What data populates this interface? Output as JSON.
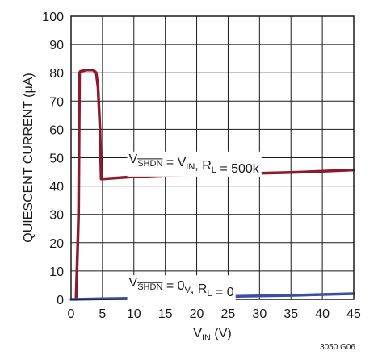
{
  "chart_data": {
    "type": "line",
    "xlabel": {
      "main": "V",
      "sub": "IN",
      "unit": " (V)"
    },
    "ylabel": "QUIESCENT CURRENT (μA)",
    "xlim": [
      0,
      45
    ],
    "ylim": [
      0,
      100
    ],
    "xticks": [
      "0",
      "5",
      "10",
      "15",
      "20",
      "25",
      "30",
      "35",
      "40",
      "45"
    ],
    "yticks": [
      "0",
      "10",
      "20",
      "30",
      "40",
      "50",
      "60",
      "70",
      "80",
      "90",
      "100"
    ],
    "grid": true,
    "series": [
      {
        "name": "V_SHDN = V_IN, R_L = 500k",
        "color": "#8b1a2b",
        "x": [
          0.8,
          1.0,
          1.2,
          1.35,
          1.5,
          2.5,
          3.5,
          4.0,
          4.3,
          4.6,
          4.8,
          5,
          10,
          15,
          20,
          25,
          30,
          35,
          40,
          45
        ],
        "y": [
          0,
          15,
          30,
          80,
          80.5,
          81,
          81,
          80,
          75,
          60,
          42.5,
          42.5,
          43.3,
          43.8,
          44,
          44.2,
          44.5,
          44.8,
          45.2,
          45.7
        ]
      },
      {
        "name": "V_SHDN = 0V, R_L = 0",
        "color": "#3a50a6",
        "x": [
          0,
          5,
          10,
          15,
          20,
          25,
          30,
          35,
          40,
          45
        ],
        "y": [
          0,
          0.2,
          0.4,
          0.6,
          0.8,
          1.0,
          1.2,
          1.4,
          1.7,
          2.0
        ]
      }
    ],
    "annotations": [
      {
        "series": 0,
        "parts": [
          {
            "t": "V",
            "sub": false
          },
          {
            "t": "SHDN",
            "sub": true,
            "overline": true
          },
          {
            "t": " = V",
            "sub": false
          },
          {
            "t": "IN",
            "sub": true
          },
          {
            "t": ", R",
            "sub": false
          },
          {
            "t": "L",
            "sub": true
          },
          {
            "t": " = 500k",
            "sub": false
          }
        ]
      },
      {
        "series": 1,
        "parts": [
          {
            "t": "V",
            "sub": false
          },
          {
            "t": "SHDN",
            "sub": true,
            "overline": true
          },
          {
            "t": " = 0",
            "sub": false
          },
          {
            "t": "V",
            "sub": true
          },
          {
            "t": ", R",
            "sub": false
          },
          {
            "t": "L",
            "sub": true
          },
          {
            "t": " = 0",
            "sub": false
          }
        ]
      }
    ],
    "figure_id": "3050 G06"
  }
}
